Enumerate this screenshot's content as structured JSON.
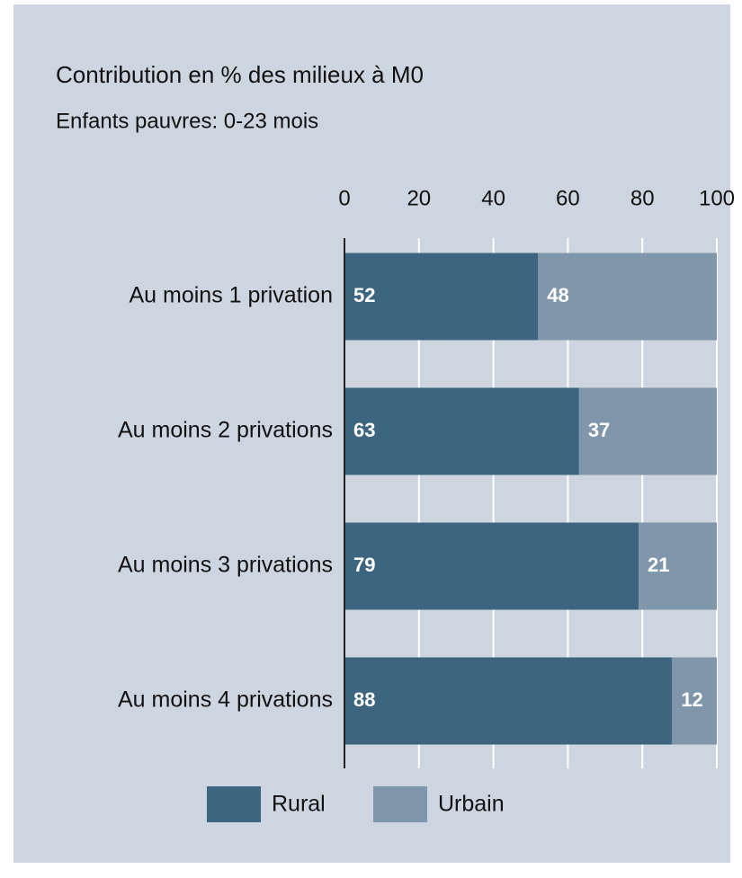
{
  "chart_data": {
    "type": "bar",
    "orientation": "horizontal",
    "stacked": true,
    "title": "Contribution en % des milieux à M0",
    "subtitle": "Enfants pauvres: 0-23 mois",
    "categories": [
      "Au moins 1 privation",
      "Au moins 2 privations",
      "Au moins 3 privations",
      "Au moins 4 privations"
    ],
    "series": [
      {
        "name": "Rural",
        "color": "#3e6580",
        "values": [
          52,
          63,
          79,
          88
        ]
      },
      {
        "name": "Urbain",
        "color": "#7f96ab",
        "values": [
          48,
          37,
          21,
          12
        ]
      }
    ],
    "xlim": [
      0,
      100
    ],
    "xticks": [
      0,
      20,
      40,
      60,
      80,
      100
    ],
    "grid": true,
    "legend": "bottom"
  }
}
